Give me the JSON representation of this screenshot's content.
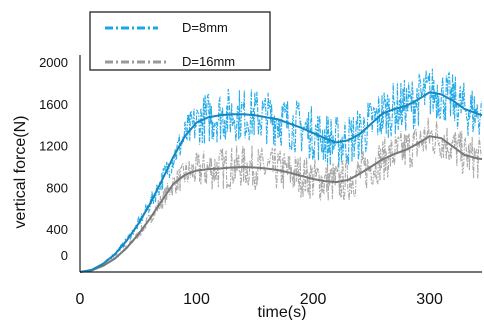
{
  "chart_data": {
    "type": "line",
    "xlabel": "time(s)",
    "ylabel": "vertical force(N)",
    "xlim": [
      0,
      345
    ],
    "ylim": [
      0,
      2000
    ],
    "x_ticks": [
      0,
      100,
      200,
      300
    ],
    "y_ticks": [
      0,
      400,
      800,
      1200,
      1600,
      2000
    ],
    "legend_position": "top-left",
    "grid": false,
    "series": [
      {
        "name": "D=8mm",
        "color": "#1aa7e8",
        "style": "dash-dot",
        "noise_amplitude": 260,
        "x": [
          0,
          10,
          20,
          30,
          40,
          50,
          60,
          70,
          80,
          90,
          100,
          110,
          120,
          130,
          140,
          150,
          160,
          170,
          180,
          190,
          200,
          210,
          220,
          230,
          240,
          250,
          260,
          270,
          280,
          290,
          300,
          310,
          320,
          330,
          340,
          345
        ],
        "mean": [
          0,
          20,
          80,
          170,
          300,
          460,
          650,
          870,
          1100,
          1300,
          1430,
          1480,
          1500,
          1510,
          1510,
          1500,
          1480,
          1460,
          1420,
          1380,
          1330,
          1280,
          1240,
          1260,
          1320,
          1420,
          1520,
          1560,
          1590,
          1650,
          1720,
          1700,
          1640,
          1560,
          1520,
          1500
        ]
      },
      {
        "name": "D=16mm",
        "color": "#9a9a9a",
        "style": "dash-dot",
        "noise_amplitude": 210,
        "x": [
          0,
          10,
          20,
          30,
          40,
          50,
          60,
          70,
          80,
          90,
          100,
          110,
          120,
          130,
          140,
          150,
          160,
          170,
          180,
          190,
          200,
          210,
          220,
          230,
          240,
          250,
          260,
          270,
          280,
          290,
          300,
          310,
          320,
          330,
          340,
          345
        ],
        "mean": [
          0,
          15,
          60,
          130,
          230,
          360,
          510,
          680,
          840,
          930,
          970,
          985,
          990,
          1000,
          1005,
          1000,
          990,
          975,
          950,
          920,
          890,
          870,
          860,
          880,
          940,
          1010,
          1080,
          1130,
          1170,
          1230,
          1300,
          1280,
          1200,
          1120,
          1090,
          1080
        ]
      }
    ]
  }
}
